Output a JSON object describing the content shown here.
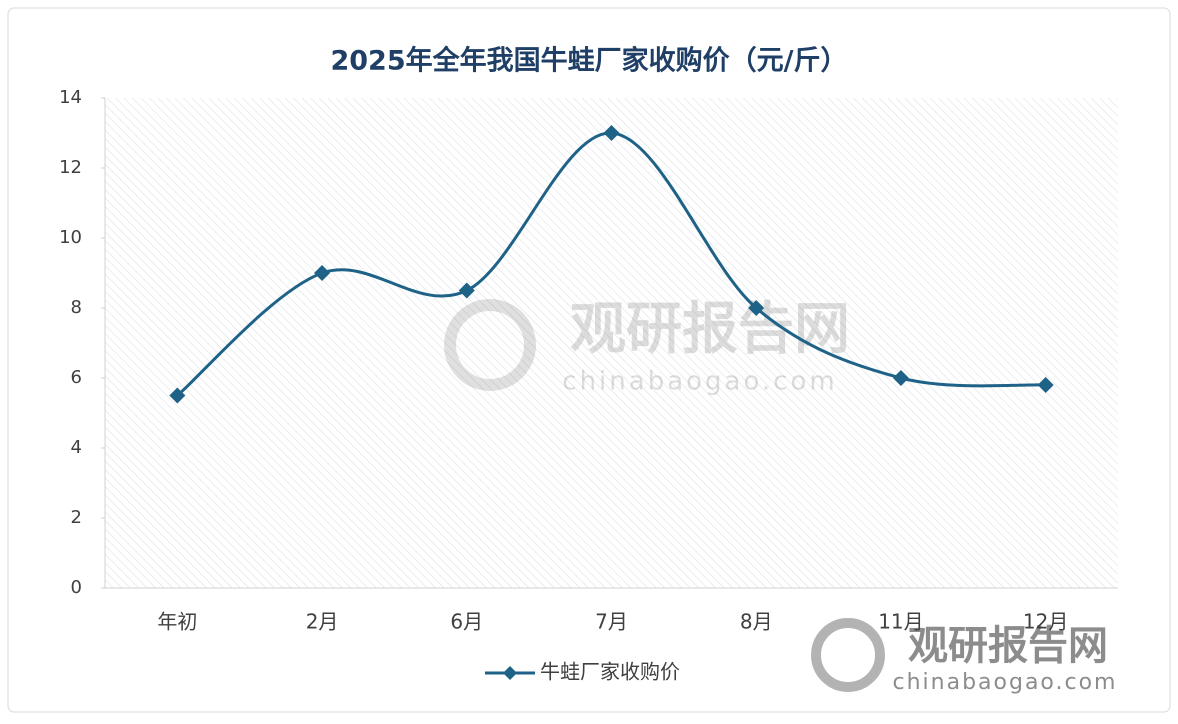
{
  "chart_data": {
    "type": "line",
    "title": "2025年全年我国牛蛙厂家收购价（元/斤）",
    "categories": [
      "年初",
      "2月",
      "6月",
      "7月",
      "8月",
      "11月",
      "12月"
    ],
    "series": [
      {
        "name": "牛蛙厂家收购价",
        "color": "#1f6288",
        "values": [
          5.5,
          9,
          8.5,
          13,
          8,
          6,
          5.8
        ]
      }
    ],
    "ylim": [
      0,
      14
    ],
    "yticks": [
      0,
      2,
      4,
      6,
      8,
      10,
      12,
      14
    ],
    "grid": false,
    "smooth": true,
    "legend": "bottom",
    "watermark": {
      "name": "观研报告网",
      "url": "chinabaogao.com"
    }
  }
}
